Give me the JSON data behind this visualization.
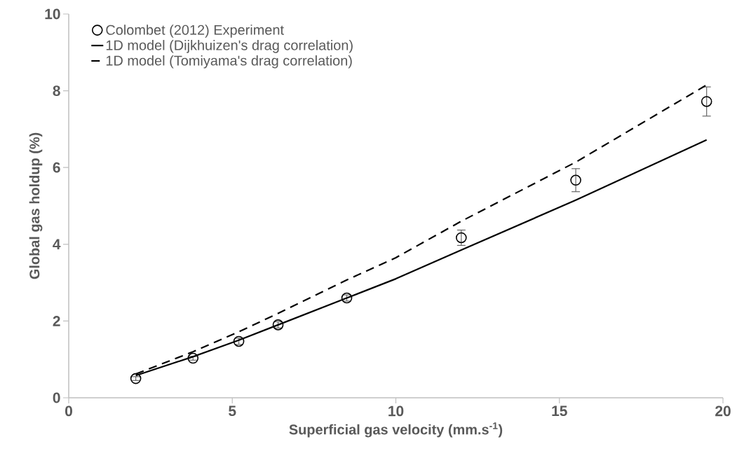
{
  "chart_data": {
    "type": "line",
    "xlabel": "Superficial gas velocity (mm.s$^{-1}$)",
    "ylabel": "Global gas holdup (%)",
    "xlim": [
      0,
      20
    ],
    "xticks": [
      0,
      5,
      10,
      15,
      20
    ],
    "ylim": [
      0,
      10
    ],
    "yticks": [
      0,
      2,
      4,
      6,
      8,
      10
    ],
    "grid": false,
    "legend": "top left",
    "series": [
      {
        "name": "Colombet (2012) Experiment",
        "type": "scatter",
        "marker": "circle",
        "color": "#000000",
        "x": [
          2.05,
          3.8,
          5.2,
          6.4,
          8.5,
          12.0,
          15.5,
          19.5
        ],
        "values": [
          0.5,
          1.03,
          1.47,
          1.9,
          2.6,
          4.17,
          5.67,
          7.72
        ],
        "errors": [
          0.05,
          0.05,
          0.08,
          0.08,
          0.08,
          0.2,
          0.3,
          0.38
        ]
      },
      {
        "name": "1D model (Dijkhuizen's drag correlation)",
        "line_style": "solid",
        "color": "#000000",
        "x": [
          2.05,
          3.8,
          5.2,
          6.4,
          8.5,
          10.0,
          12.0,
          15.5,
          19.5
        ],
        "values": [
          0.58,
          1.07,
          1.5,
          1.9,
          2.6,
          3.1,
          3.85,
          5.15,
          6.72
        ]
      },
      {
        "name": "1D model (Tomiyama's drag correlation)",
        "line_style": "dashed",
        "color": "#000000",
        "x": [
          2.05,
          3.8,
          5.2,
          6.4,
          8.5,
          10.0,
          12.0,
          15.5,
          19.5
        ],
        "values": [
          0.62,
          1.2,
          1.72,
          2.2,
          3.07,
          3.65,
          4.6,
          6.14,
          8.15
        ]
      }
    ]
  }
}
